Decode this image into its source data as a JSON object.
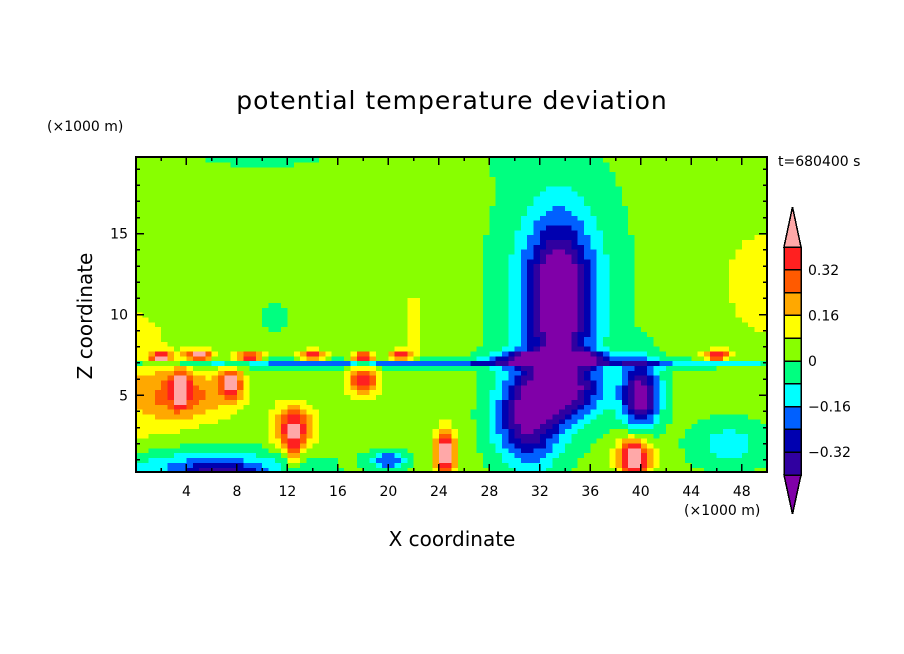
{
  "chart_data": {
    "type": "heatmap",
    "subtype": "filled-contour",
    "title": "potential temperature deviation",
    "xlabel": "X coordinate",
    "ylabel": "Z coordinate",
    "x_unit": "(×1000 m)",
    "y_unit": "(×1000 m)",
    "time_label": "t=680400 s",
    "xlim": [
      0,
      50
    ],
    "ylim": [
      0.25,
      19.75
    ],
    "xticks": [
      4,
      8,
      12,
      16,
      20,
      24,
      28,
      32,
      36,
      40,
      44,
      48
    ],
    "yticks": [
      5,
      10,
      15
    ],
    "levels": [
      -0.4,
      -0.32,
      -0.24,
      -0.16,
      -0.08,
      0,
      0.08,
      0.16,
      0.24,
      0.32,
      0.4
    ],
    "colorbar_labels": [
      "0.32",
      "0.16",
      "0",
      "−0.16",
      "−0.32"
    ],
    "colorbar_label_values": [
      0.32,
      0.16,
      0,
      -0.16,
      -0.32
    ],
    "colors": [
      "#8000a8",
      "#3000a0",
      "#0000b0",
      "#0060ff",
      "#00ffff",
      "#00ff80",
      "#88ff00",
      "#ffff00",
      "#ffa800",
      "#ff5a00",
      "#ff2020",
      "#ffa8a8"
    ],
    "field_base": 0.03,
    "field_features": [
      {
        "x": 0,
        "z": 6,
        "sx": 4,
        "sz": 6,
        "a": 0.08
      },
      {
        "x": 50,
        "z": 12,
        "sx": 4,
        "sz": 4,
        "a": 0.09
      },
      {
        "x": 10,
        "z": 20,
        "sx": 6,
        "sz": 1,
        "a": -0.06
      },
      {
        "x": 30,
        "z": 19.5,
        "sx": 2,
        "sz": 1,
        "a": -0.05
      },
      {
        "x": 11,
        "z": 9.8,
        "sx": 1.4,
        "sz": 1.4,
        "a": -0.05
      },
      {
        "x": 22,
        "z": 9.5,
        "sx": 1,
        "sz": 3,
        "a": 0.07
      },
      {
        "x": 26,
        "z": 8.5,
        "sx": 0.5,
        "sz": 1.5,
        "a": 0.06
      },
      {
        "x": 33.5,
        "z": 11,
        "sx": 2.6,
        "sz": 4.5,
        "a": -0.5
      },
      {
        "x": 33.5,
        "z": 12,
        "sx": 5,
        "sz": 8,
        "a": -0.12
      },
      {
        "x": 33,
        "z": 7.4,
        "sx": 4,
        "sz": 0.35,
        "a": -0.45
      },
      {
        "x": 25,
        "z": 7,
        "sx": 30,
        "sz": 0.25,
        "a": -0.25
      },
      {
        "x": 2,
        "z": 7.4,
        "sx": 0.8,
        "sz": 0.3,
        "a": 0.45
      },
      {
        "x": 5,
        "z": 7.5,
        "sx": 1,
        "sz": 0.3,
        "a": 0.45
      },
      {
        "x": 9,
        "z": 7.4,
        "sx": 1,
        "sz": 0.3,
        "a": 0.4
      },
      {
        "x": 14,
        "z": 7.5,
        "sx": 1,
        "sz": 0.3,
        "a": 0.4
      },
      {
        "x": 18,
        "z": 7.4,
        "sx": 0.8,
        "sz": 0.3,
        "a": 0.45
      },
      {
        "x": 21,
        "z": 7.5,
        "sx": 0.8,
        "sz": 0.3,
        "a": 0.4
      },
      {
        "x": 46,
        "z": 7.5,
        "sx": 1,
        "sz": 0.3,
        "a": 0.4
      },
      {
        "x": 3.5,
        "z": 5.5,
        "sx": 0.7,
        "sz": 1,
        "a": 0.4
      },
      {
        "x": 7.5,
        "z": 5.8,
        "sx": 0.8,
        "sz": 0.9,
        "a": 0.4
      },
      {
        "x": 18,
        "z": 6,
        "sx": 1.2,
        "sz": 0.9,
        "a": 0.35
      },
      {
        "x": 4,
        "z": 5,
        "sx": 4,
        "sz": 1.5,
        "a": 0.22
      },
      {
        "x": 12.5,
        "z": 3,
        "sx": 1.5,
        "sz": 1.3,
        "a": 0.4
      },
      {
        "x": 12.5,
        "z": 1.5,
        "sx": 0.6,
        "sz": 1,
        "a": 0.2
      },
      {
        "x": 24.5,
        "z": 1.5,
        "sx": 0.8,
        "sz": 1.3,
        "a": 0.5
      },
      {
        "x": 39.5,
        "z": 1.2,
        "sx": 1.3,
        "sz": 1.2,
        "a": 0.5
      },
      {
        "x": 31,
        "z": 3.5,
        "sx": 2.5,
        "sz": 2.8,
        "a": -0.42
      },
      {
        "x": 34,
        "z": 5.3,
        "sx": 3,
        "sz": 1.8,
        "a": -0.35
      },
      {
        "x": 40,
        "z": 5,
        "sx": 1.5,
        "sz": 2,
        "a": -0.5
      },
      {
        "x": 5,
        "z": 0.5,
        "sx": 8,
        "sz": 1.2,
        "a": -0.22
      },
      {
        "x": 7,
        "z": 0.3,
        "sx": 3,
        "sz": 0.6,
        "a": -0.2
      },
      {
        "x": 20,
        "z": 1,
        "sx": 1.5,
        "sz": 0.6,
        "a": -0.25
      },
      {
        "x": 47,
        "z": 2,
        "sx": 3,
        "sz": 1.5,
        "a": -0.15
      }
    ]
  }
}
